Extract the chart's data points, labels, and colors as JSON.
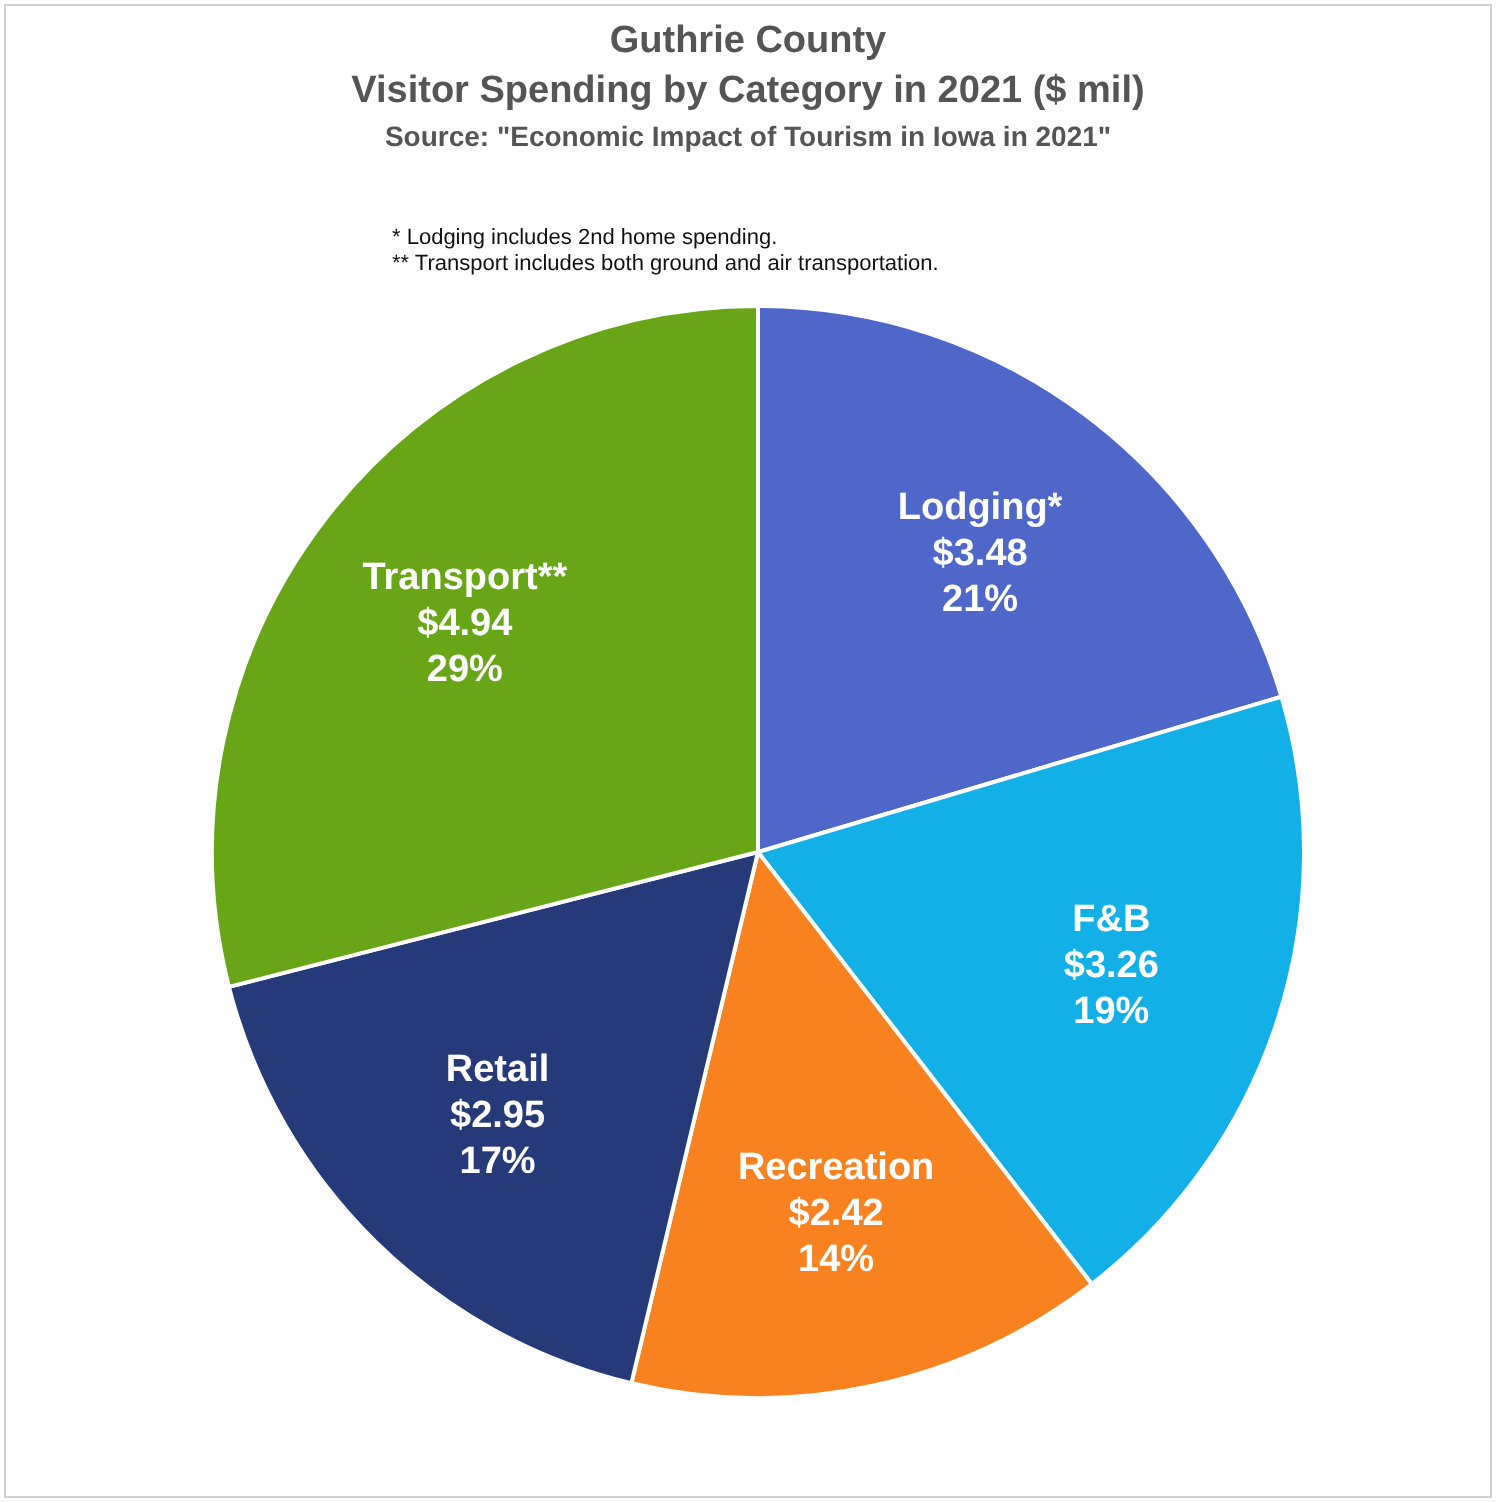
{
  "chart_data": {
    "type": "pie",
    "title": "Guthrie County\nVisitor Spending by Category in 2021 ($ mil)",
    "annotations": [
      "Source: \"Economic Impact of Tourism in Iowa in 2021\"",
      "* Lodging includes 2nd home spending.",
      "** Transport includes both ground and air transportation."
    ],
    "categories": [
      "Lodging*",
      "F&B",
      "Recreation",
      "Retail",
      "Transport**"
    ],
    "values": [
      3.48,
      3.26,
      2.42,
      2.95,
      4.94
    ],
    "colors": [
      "#4f67c9",
      "#13b0e8",
      "#f7821f",
      "#263a7a",
      "#68a617"
    ],
    "value_labels": [
      "$3.48\n21%",
      "$3.26\n19%",
      "$2.42\n14%",
      "$2.95\n17%",
      "$4.94\n29%"
    ],
    "legend": false
  }
}
